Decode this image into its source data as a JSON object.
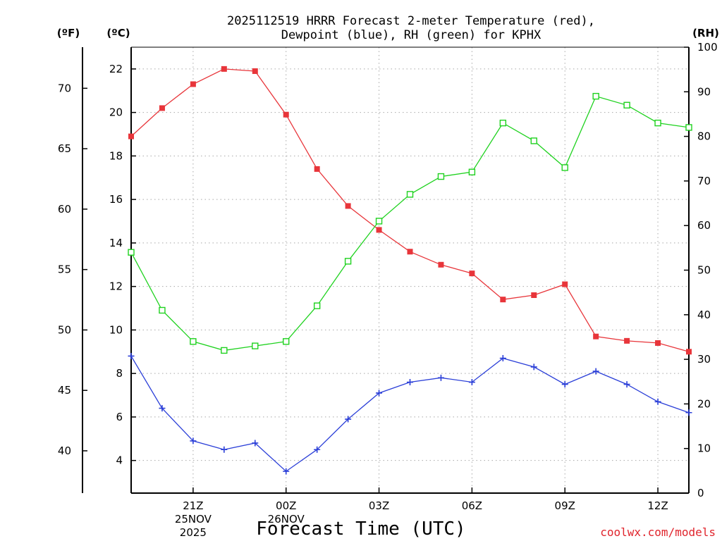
{
  "chart_data": {
    "type": "line",
    "title_line1": "2025112519 HRRR Forecast 2-meter Temperature (red),",
    "title_line2": "Dewpoint (blue), RH (green) for KPHX",
    "xlabel": "Forecast Time (UTC)",
    "watermark": "coolwx.com/models",
    "left_f_unit": "(ºF)",
    "left_c_unit": "(ºC)",
    "right_unit": "(RH)",
    "f_ticks": [
      "40",
      "45",
      "50",
      "55",
      "60",
      "65",
      "70"
    ],
    "c_ticks": [
      "4",
      "6",
      "8",
      "10",
      "12",
      "14",
      "16",
      "18",
      "20",
      "22"
    ],
    "rh_ticks": [
      "0",
      "10",
      "20",
      "30",
      "40",
      "50",
      "60",
      "70",
      "80",
      "90",
      "100"
    ],
    "c_range": [
      2.5,
      23.0
    ],
    "rh_range": [
      0,
      100
    ],
    "x_count": 19,
    "x_ticks": [
      {
        "i": 2,
        "label": "21Z",
        "sub1": "25NOV",
        "sub2": "2025"
      },
      {
        "i": 5,
        "label": "00Z",
        "sub1": "26NOV",
        "sub2": ""
      },
      {
        "i": 8,
        "label": "03Z",
        "sub1": "",
        "sub2": ""
      },
      {
        "i": 11,
        "label": "06Z",
        "sub1": "",
        "sub2": ""
      },
      {
        "i": 14,
        "label": "09Z",
        "sub1": "",
        "sub2": ""
      },
      {
        "i": 17,
        "label": "12Z",
        "sub1": "",
        "sub2": ""
      }
    ],
    "x": [
      "19Z",
      "20Z",
      "21Z",
      "22Z",
      "23Z",
      "00Z",
      "01Z",
      "02Z",
      "03Z",
      "04Z",
      "05Z",
      "06Z",
      "07Z",
      "08Z",
      "09Z",
      "10Z",
      "11Z",
      "12Z",
      "13Z"
    ],
    "series": [
      {
        "name": "Temperature",
        "unit": "C",
        "color": "#e8353a",
        "marker": "filled-square",
        "values": [
          18.9,
          20.2,
          21.3,
          22.0,
          21.9,
          19.9,
          17.4,
          15.7,
          14.6,
          13.6,
          13.0,
          12.6,
          11.4,
          11.6,
          12.1,
          9.7,
          9.5,
          9.4,
          9.0
        ]
      },
      {
        "name": "Dewpoint",
        "unit": "C",
        "color": "#2b3fd8",
        "marker": "plus",
        "values": [
          8.8,
          6.4,
          4.9,
          4.5,
          4.8,
          3.5,
          4.5,
          5.9,
          7.1,
          7.6,
          7.8,
          7.6,
          8.7,
          8.3,
          7.5,
          8.1,
          7.5,
          6.7,
          6.2
        ]
      },
      {
        "name": "RH",
        "unit": "%",
        "color": "#1fd21f",
        "marker": "open-square",
        "values": [
          54,
          41,
          34,
          32,
          33,
          34,
          42,
          52,
          61,
          67,
          71,
          72,
          83,
          79,
          73,
          89,
          87,
          83,
          82
        ]
      }
    ]
  }
}
